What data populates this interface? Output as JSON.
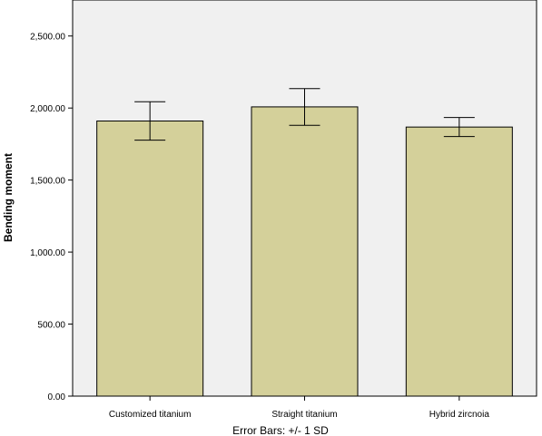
{
  "chart_data": {
    "type": "bar",
    "categories": [
      "Customized titanium",
      "Straight titanium",
      "Hybrid zircnoia"
    ],
    "values": [
      1910,
      2008,
      1868
    ],
    "error_bars": [
      {
        "low": 1777,
        "high": 2044
      },
      {
        "low": 1880,
        "high": 2135
      },
      {
        "low": 1802,
        "high": 1934
      }
    ],
    "ylabel": "Bending moment",
    "ylim": [
      0,
      2750
    ],
    "yticks": [
      0,
      500,
      1000,
      1500,
      2000,
      2500
    ],
    "ytick_labels": [
      "0.00",
      "500.00",
      "1,000.00",
      "1,500.00",
      "2,000.00",
      "2,500.00"
    ],
    "footnote": "Error Bars: +/- 1 SD",
    "grid": false,
    "colors": {
      "bar_fill": "#d4d09a",
      "bar_stroke": "#000000",
      "plot_background": "#f0f0f0"
    }
  }
}
